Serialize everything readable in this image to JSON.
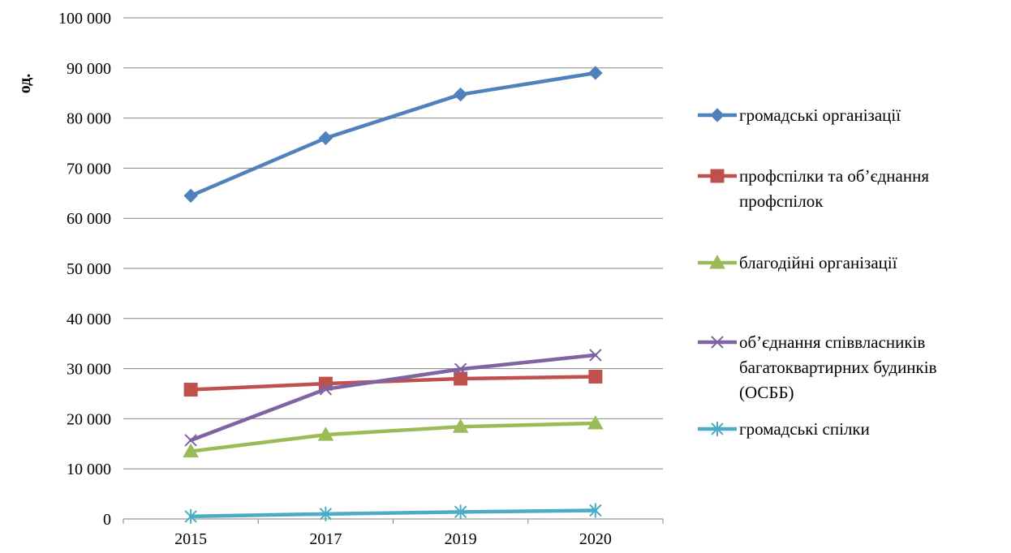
{
  "chart_data": {
    "type": "line",
    "title": "",
    "xlabel": "",
    "ylabel": "од.",
    "categories": [
      "2015",
      "2017",
      "2019",
      "2020"
    ],
    "ylim": [
      0,
      100000
    ],
    "y_ticks": [
      0,
      10000,
      20000,
      30000,
      40000,
      50000,
      60000,
      70000,
      80000,
      90000,
      100000
    ],
    "y_tick_labels": [
      "0",
      "10 000",
      "20 000",
      "30 000",
      "40 000",
      "50 000",
      "60 000",
      "70 000",
      "80 000",
      "90 000",
      "100 000"
    ],
    "grid": "horizontal",
    "legend_position": "right",
    "series": [
      {
        "name": "громадські організації",
        "values": [
          64500,
          76000,
          84700,
          89000
        ],
        "color": "#4F81BD",
        "marker": "diamond"
      },
      {
        "name": "профспілки та об’єднання профспілок",
        "values": [
          25800,
          27000,
          28000,
          28400
        ],
        "color": "#C0504D",
        "marker": "square"
      },
      {
        "name": "благодійні організації",
        "values": [
          13500,
          16800,
          18400,
          19100
        ],
        "color": "#9BBB59",
        "marker": "triangle"
      },
      {
        "name": "об’єднання співвласників багатоквартирних будинків (ОСББ)",
        "values": [
          15700,
          25900,
          29900,
          32700
        ],
        "color": "#8064A2",
        "marker": "x"
      },
      {
        "name": "громадські спілки",
        "values": [
          500,
          1000,
          1400,
          1700
        ],
        "color": "#4BACC6",
        "marker": "star"
      }
    ]
  }
}
